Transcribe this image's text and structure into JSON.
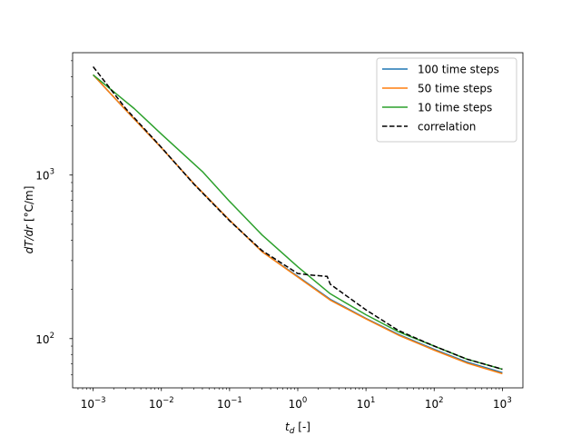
{
  "chart_data": {
    "type": "line",
    "xscale": "log",
    "yscale": "log",
    "xlim": [
      0.0005,
      2000
    ],
    "ylim": [
      50,
      5600
    ],
    "xlabel_prefix": "t",
    "xlabel_sub": "d",
    "xlabel_suffix": " [-]",
    "ylabel_main": "dT/dr",
    "ylabel_suffix": " [°C/m]",
    "x_ticks": [
      {
        "value": 0.001,
        "base": "10",
        "exp": "−3"
      },
      {
        "value": 0.01,
        "base": "10",
        "exp": "−2"
      },
      {
        "value": 0.1,
        "base": "10",
        "exp": "−1"
      },
      {
        "value": 1,
        "base": "10",
        "exp": "0"
      },
      {
        "value": 10,
        "base": "10",
        "exp": "1"
      },
      {
        "value": 100,
        "base": "10",
        "exp": "2"
      },
      {
        "value": 1000,
        "base": "10",
        "exp": "3"
      }
    ],
    "y_ticks": [
      {
        "value": 100,
        "base": "10",
        "exp": "2"
      },
      {
        "value": 1000,
        "base": "10",
        "exp": "3"
      }
    ],
    "legend_position": "top-right",
    "grid": false,
    "series": [
      {
        "name": "100 time steps",
        "color": "#1f77b4",
        "style": "solid",
        "x": [
          0.001,
          0.003,
          0.01,
          0.03,
          0.1,
          0.3,
          1,
          3,
          10,
          30,
          100,
          300,
          1000
        ],
        "y": [
          4100,
          2500,
          1470,
          885,
          530,
          340,
          240,
          174,
          133,
          106,
          86,
          72,
          62
        ]
      },
      {
        "name": "50 time steps",
        "color": "#ff7f0e",
        "style": "solid",
        "x": [
          0.001,
          0.003,
          0.01,
          0.03,
          0.1,
          0.3,
          1,
          3,
          10,
          30,
          100,
          300,
          1000
        ],
        "y": [
          4100,
          2500,
          1470,
          885,
          530,
          340,
          238,
          172,
          132,
          105,
          85,
          71,
          61
        ]
      },
      {
        "name": "10 time steps",
        "color": "#2ca02c",
        "style": "solid",
        "x": [
          0.001,
          0.004,
          0.01,
          0.04,
          0.1,
          0.3,
          1,
          3,
          10,
          30,
          100,
          300,
          1000
        ],
        "y": [
          4100,
          2550,
          1780,
          1050,
          690,
          430,
          275,
          188,
          140,
          110,
          90,
          75,
          65
        ]
      },
      {
        "name": "correlation",
        "color": "#000000",
        "style": "dashed",
        "x": [
          0.001,
          0.003,
          0.01,
          0.03,
          0.1,
          0.3,
          1,
          1.5,
          2.7,
          3,
          10,
          30,
          100,
          300,
          1000
        ],
        "y": [
          4600,
          2550,
          1480,
          880,
          525,
          345,
          250,
          245,
          240,
          215,
          150,
          112,
          90,
          75,
          65
        ]
      }
    ]
  }
}
